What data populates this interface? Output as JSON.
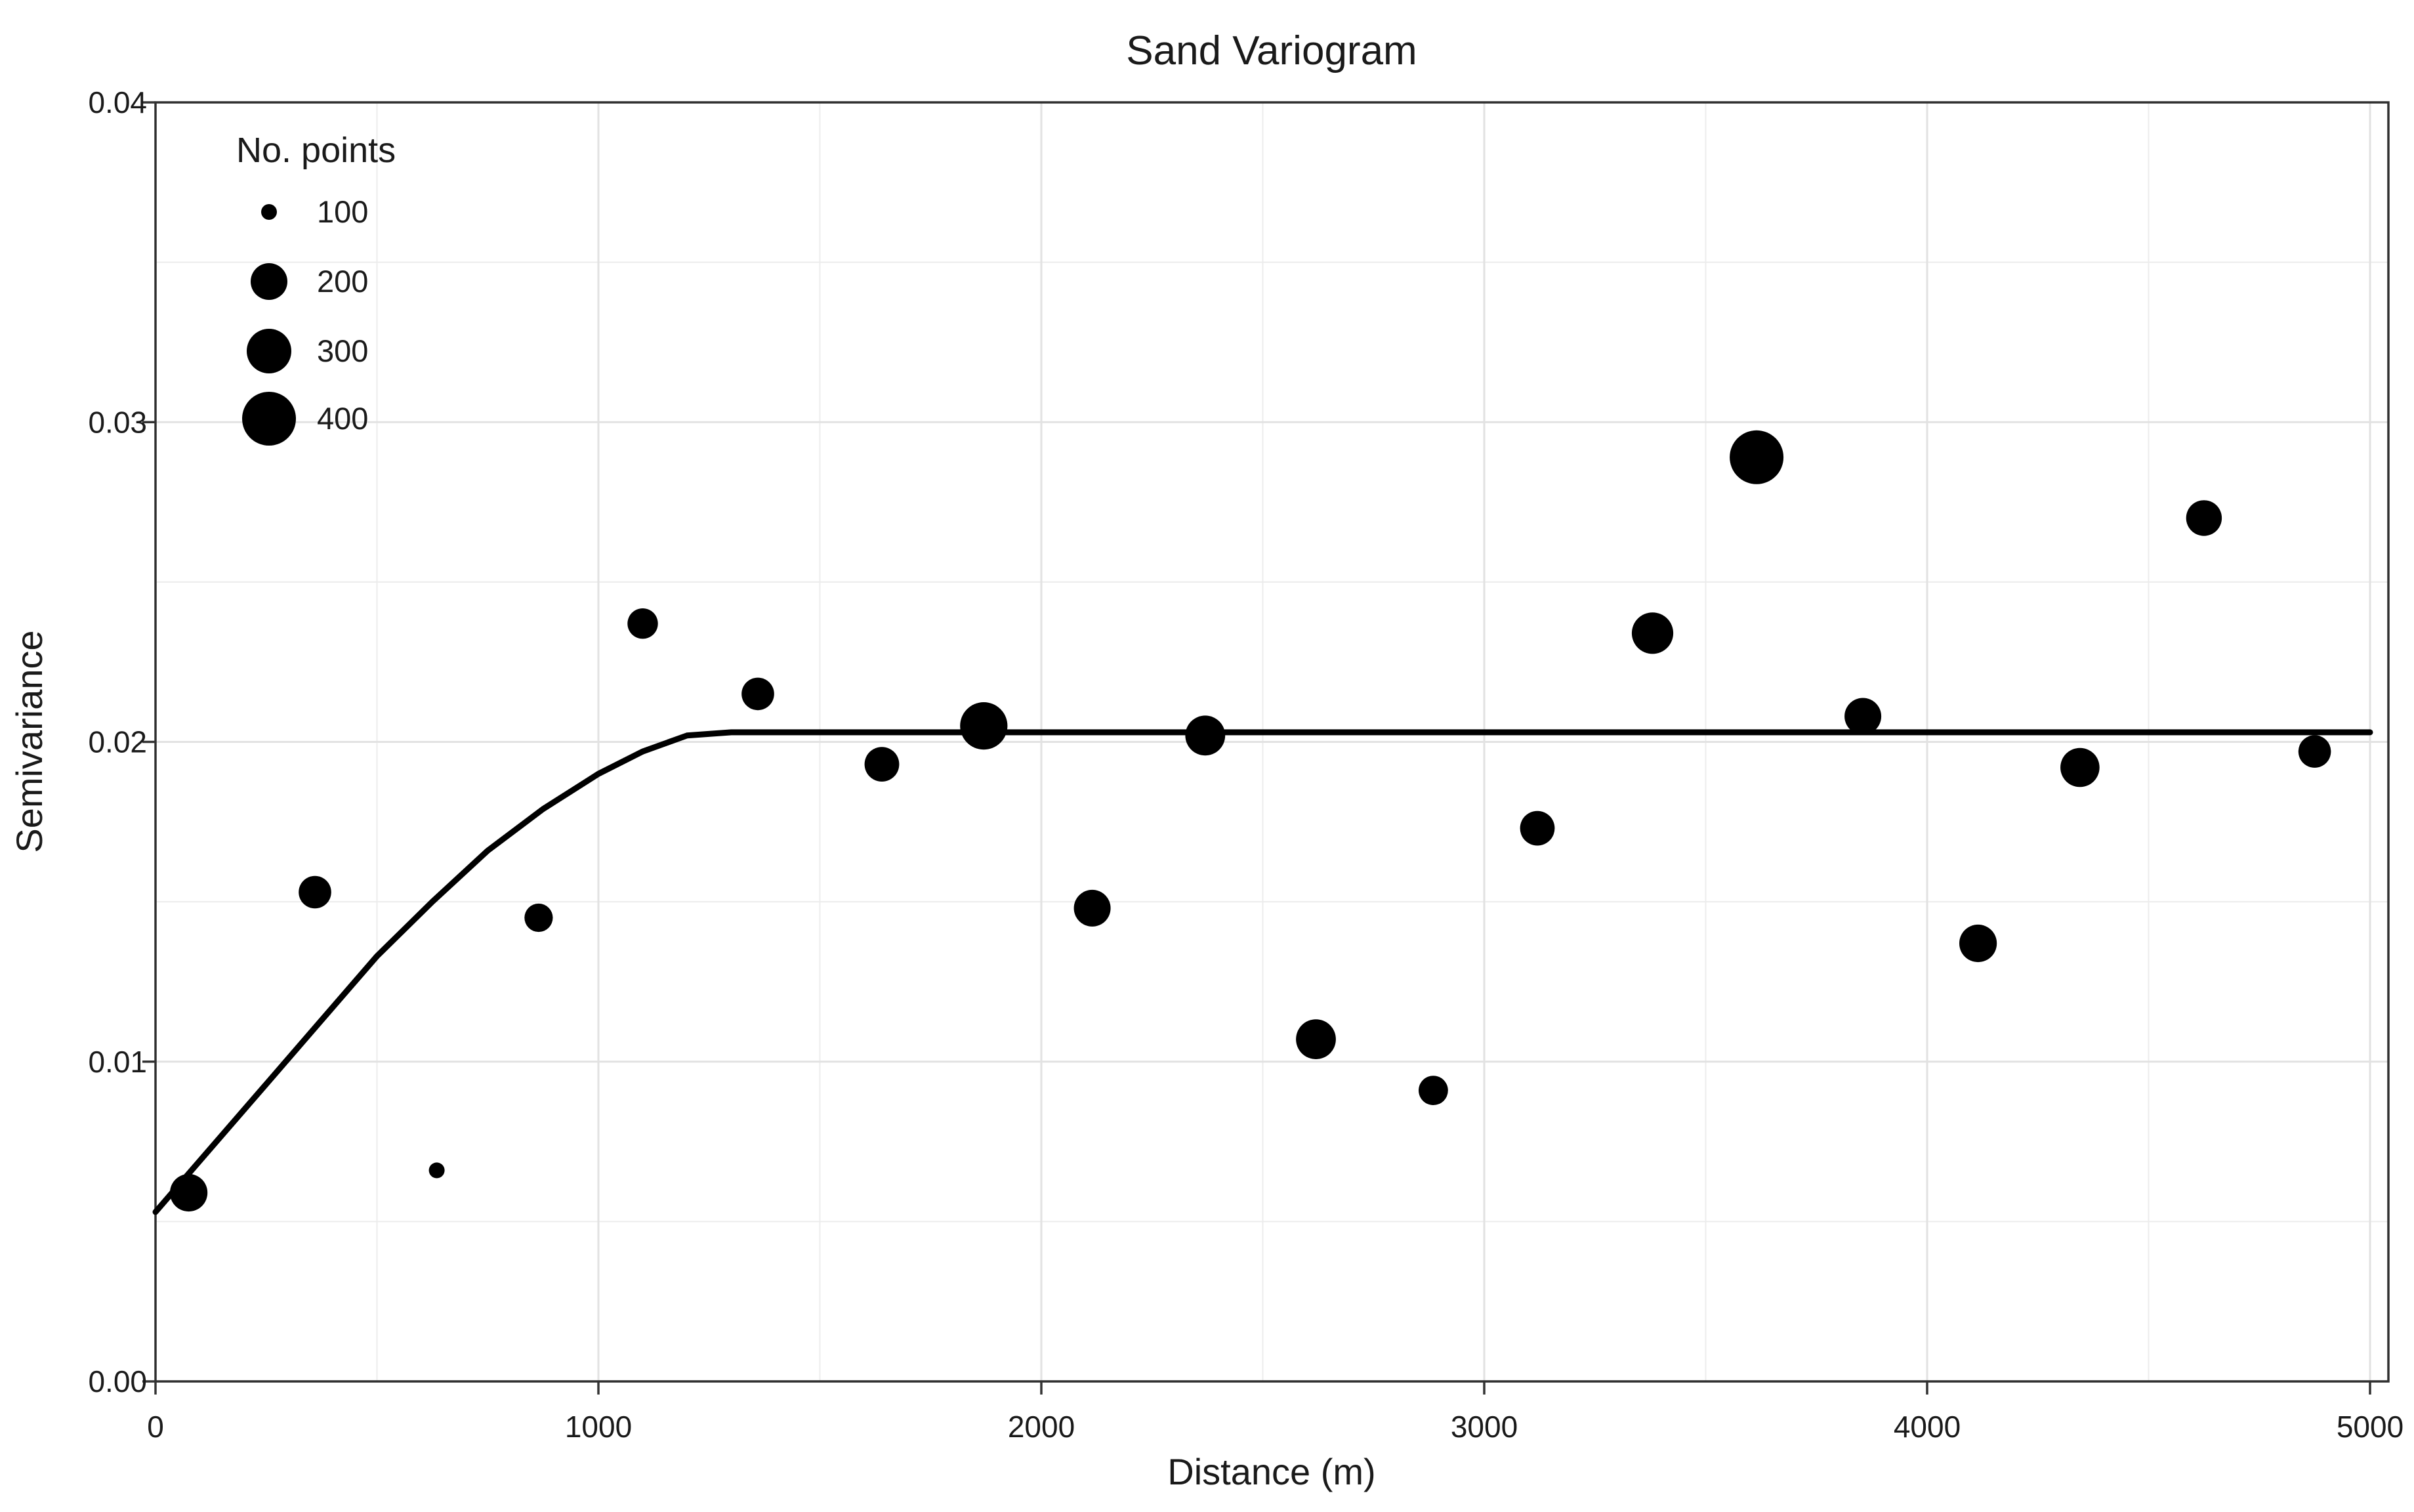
{
  "colors": {
    "background": "#ffffff",
    "point": "#000000",
    "model_line": "#000000",
    "panel_border": "#2e2e2e",
    "grid_major": "#e2e2e2",
    "grid_minor": "#ececec",
    "tick_mark": "#333333",
    "text": "#1a1a1a"
  },
  "legend": {
    "title": "No. points",
    "items": [
      {
        "label": "100",
        "value": 100
      },
      {
        "label": "200",
        "value": 200
      },
      {
        "label": "300",
        "value": 300
      },
      {
        "label": "400",
        "value": 400
      }
    ]
  },
  "chart_data": {
    "type": "scatter",
    "title": "Sand Variogram",
    "xlabel": "Distance (m)",
    "ylabel": "Semivariance",
    "xlim": [
      0,
      5000
    ],
    "ylim": [
      0,
      0.04
    ],
    "grid": "on",
    "legend_position": "inside-top-left",
    "x_ticks": {
      "values": [
        0,
        1000,
        2000,
        3000,
        4000,
        5000
      ],
      "labels": [
        "0",
        "1000",
        "2000",
        "3000",
        "4000",
        "5000"
      ]
    },
    "y_ticks": {
      "values": [
        0,
        0.01,
        0.02,
        0.03,
        0.04
      ],
      "labels": [
        "0.00",
        "0.01",
        "0.02",
        "0.03",
        "0.04"
      ]
    },
    "x_minor_gridlines": [
      500,
      1500,
      2500,
      3500,
      4500
    ],
    "y_minor_gridlines": [
      0.005,
      0.015,
      0.025,
      0.035
    ],
    "size_aesthetic": "No. points",
    "size_legend_scale": [
      [
        100,
        12
      ],
      [
        200,
        28
      ],
      [
        300,
        34
      ],
      [
        400,
        41
      ]
    ],
    "series": [
      {
        "name": "empirical-variogram",
        "marker": "filled-circle",
        "color": "#000000",
        "points": [
          {
            "distance": 75,
            "semivariance": 0.0059,
            "n_points": 210
          },
          {
            "distance": 360,
            "semivariance": 0.0153,
            "n_points": 180
          },
          {
            "distance": 635,
            "semivariance": 0.0066,
            "n_points": 100
          },
          {
            "distance": 865,
            "semivariance": 0.0145,
            "n_points": 160
          },
          {
            "distance": 1100,
            "semivariance": 0.0237,
            "n_points": 170
          },
          {
            "distance": 1360,
            "semivariance": 0.0215,
            "n_points": 180
          },
          {
            "distance": 1640,
            "semivariance": 0.0193,
            "n_points": 190
          },
          {
            "distance": 1870,
            "semivariance": 0.0205,
            "n_points": 330
          },
          {
            "distance": 2115,
            "semivariance": 0.0148,
            "n_points": 200
          },
          {
            "distance": 2370,
            "semivariance": 0.0202,
            "n_points": 240
          },
          {
            "distance": 2620,
            "semivariance": 0.0107,
            "n_points": 240
          },
          {
            "distance": 2885,
            "semivariance": 0.0091,
            "n_points": 165
          },
          {
            "distance": 3120,
            "semivariance": 0.0173,
            "n_points": 190
          },
          {
            "distance": 3380,
            "semivariance": 0.0234,
            "n_points": 260
          },
          {
            "distance": 3615,
            "semivariance": 0.0289,
            "n_points": 400
          },
          {
            "distance": 3855,
            "semivariance": 0.0208,
            "n_points": 200
          },
          {
            "distance": 4115,
            "semivariance": 0.0137,
            "n_points": 210
          },
          {
            "distance": 4345,
            "semivariance": 0.0192,
            "n_points": 230
          },
          {
            "distance": 4625,
            "semivariance": 0.027,
            "n_points": 195
          },
          {
            "distance": 4875,
            "semivariance": 0.0197,
            "n_points": 180
          }
        ]
      }
    ],
    "model_curve": {
      "name": "fitted-variogram-model",
      "shape": "spherical",
      "nugget": 0.0053,
      "sill": 0.0203,
      "range_m": 1250,
      "points": [
        [
          0,
          0.0053
        ],
        [
          125,
          0.0073
        ],
        [
          250,
          0.0093
        ],
        [
          375,
          0.0113
        ],
        [
          500,
          0.0133
        ],
        [
          625,
          0.015
        ],
        [
          750,
          0.0166
        ],
        [
          875,
          0.0179
        ],
        [
          1000,
          0.019
        ],
        [
          1100,
          0.0197
        ],
        [
          1200,
          0.0202
        ],
        [
          1300,
          0.0203
        ],
        [
          5000,
          0.0203
        ]
      ]
    }
  }
}
